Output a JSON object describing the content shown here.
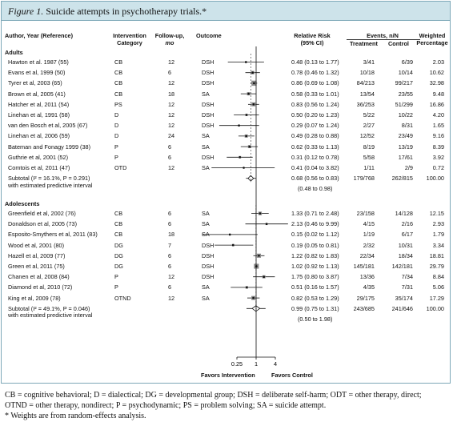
{
  "figure_label": "Figure 1.",
  "figure_title": "Suicide attempts in psychotherapy trials.*",
  "headers": {
    "author": "Author, Year (Reference)",
    "intervention": "Intervention",
    "intervention2": "Category",
    "followup": "Follow-up,",
    "followup2": "mo",
    "outcome": "Outcome",
    "rr": "Relative Risk",
    "rr2": "(95% CI)",
    "events": "Events, n/N",
    "treatment": "Treatment",
    "control": "Control",
    "weighted": "Weighted",
    "weighted2": "Percentage"
  },
  "groups": [
    {
      "name": "Adults",
      "studies": [
        {
          "author": "Hawton et al. 1987 (55)",
          "cat": "CB",
          "fu": "12",
          "outcome": "DSH",
          "rr_text": "0.48 (0.13 to 1.77)",
          "treat": "3/41",
          "ctrl": "6/39",
          "weight": "2.03"
        },
        {
          "author": "Evans et al, 1999 (50)",
          "cat": "CB",
          "fu": "6",
          "outcome": "DSH",
          "rr_text": "0.78 (0.46 to 1.32)",
          "treat": "10/18",
          "ctrl": "10/14",
          "weight": "10.62"
        },
        {
          "author": "Tyrer et al, 2003 (65)",
          "cat": "CB",
          "fu": "12",
          "outcome": "DSH",
          "rr_text": "0.86 (0.69 to 1.08)",
          "treat": "84/213",
          "ctrl": "99/217",
          "weight": "32.98"
        },
        {
          "author": "Brown et al, 2005 (41)",
          "cat": "CB",
          "fu": "18",
          "outcome": "SA",
          "rr_text": "0.58 (0.33 to 1.01)",
          "treat": "13/54",
          "ctrl": "23/55",
          "weight": "9.48"
        },
        {
          "author": "Hatcher et al, 2011 (54)",
          "cat": "PS",
          "fu": "12",
          "outcome": "DSH",
          "rr_text": "0.83 (0.56 to 1.24)",
          "treat": "36/253",
          "ctrl": "51/299",
          "weight": "16.86"
        },
        {
          "author": "Linehan et al, 1991 (58)",
          "cat": "D",
          "fu": "12",
          "outcome": "DSH",
          "rr_text": "0.50 (0.20 to 1.23)",
          "treat": "5/22",
          "ctrl": "10/22",
          "weight": "4.20"
        },
        {
          "author": "van den Bosch et al, 2005 (67)",
          "cat": "D",
          "fu": "12",
          "outcome": "DSH",
          "rr_text": "0.29 (0.07 to 1.24)",
          "treat": "2/27",
          "ctrl": "8/31",
          "weight": "1.65"
        },
        {
          "author": "Linehan et al, 2006 (59)",
          "cat": "D",
          "fu": "24",
          "outcome": "SA",
          "rr_text": "0.49 (0.28 to 0.88)",
          "treat": "12/52",
          "ctrl": "23/49",
          "weight": "9.16"
        },
        {
          "author": "Bateman and Fonagy 1999 (38)",
          "cat": "P",
          "fu": "6",
          "outcome": "SA",
          "rr_text": "0.62 (0.33 to 1.13)",
          "treat": "8/19",
          "ctrl": "13/19",
          "weight": "8.39"
        },
        {
          "author": "Guthrie et al, 2001 (52)",
          "cat": "P",
          "fu": "6",
          "outcome": "DSH",
          "rr_text": "0.31 (0.12 to 0.78)",
          "treat": "5/58",
          "ctrl": "17/61",
          "weight": "3.92"
        },
        {
          "author": "Comtois et al, 2011 (47)",
          "cat": "OTD",
          "fu": "12",
          "outcome": "SA",
          "rr_text": "0.41 (0.04 to 3.82)",
          "treat": "1/11",
          "ctrl": "2/9",
          "weight": "0.72"
        }
      ],
      "subtotal_label": "Subtotal (I² = 16.1%, P = 0.291)",
      "subtotal_label2": "with estimated predictive interval",
      "subtotal_rr": "0.68 (0.56 to 0.83)",
      "subtotal_pi": "(0.48 to 0.98)",
      "subtotal_treat": "179/768",
      "subtotal_ctrl": "262/815",
      "subtotal_weight": "100.00"
    },
    {
      "name": "Adolescents",
      "studies": [
        {
          "author": "Greenfield et al, 2002 (76)",
          "cat": "CB",
          "fu": "6",
          "outcome": "SA",
          "rr_text": "1.33 (0.71 to 2.48)",
          "treat": "23/158",
          "ctrl": "14/128",
          "weight": "12.15"
        },
        {
          "author": "Donaldson et al, 2005 (73)",
          "cat": "CB",
          "fu": "6",
          "outcome": "SA",
          "rr_text": "2.13 (0.46 to 9.99)",
          "treat": "4/15",
          "ctrl": "2/16",
          "weight": "2.93"
        },
        {
          "author": "Esposito-Smythers et al, 2011 (83)",
          "cat": "CB",
          "fu": "18",
          "outcome": "SA",
          "rr_text": "0.15 (0.02 to 1.12)",
          "treat": "1/19",
          "ctrl": "6/17",
          "weight": "1.79"
        },
        {
          "author": "Wood et al, 2001 (80)",
          "cat": "DG",
          "fu": "7",
          "outcome": "DSH",
          "rr_text": "0.19 (0.05 to 0.81)",
          "treat": "2/32",
          "ctrl": "10/31",
          "weight": "3.34"
        },
        {
          "author": "Hazell et al, 2009 (77)",
          "cat": "DG",
          "fu": "6",
          "outcome": "DSH",
          "rr_text": "1.22 (0.82 to 1.83)",
          "treat": "22/34",
          "ctrl": "18/34",
          "weight": "18.81"
        },
        {
          "author": "Green et al, 2011 (75)",
          "cat": "DG",
          "fu": "6",
          "outcome": "DSH",
          "rr_text": "1.02 (0.92 to 1.13)",
          "treat": "145/181",
          "ctrl": "142/181",
          "weight": "29.79"
        },
        {
          "author": "Chanen et al, 2008 (84)",
          "cat": "P",
          "fu": "12",
          "outcome": "DSH",
          "rr_text": "1.75 (0.80 to 3.87)",
          "treat": "13/36",
          "ctrl": "7/34",
          "weight": "8.84"
        },
        {
          "author": "Diamond et al, 2010 (72)",
          "cat": "P",
          "fu": "6",
          "outcome": "SA",
          "rr_text": "0.51 (0.16 to 1.57)",
          "treat": "4/35",
          "ctrl": "7/31",
          "weight": "5.06"
        },
        {
          "author": "King et al, 2009 (78)",
          "cat": "OTND",
          "fu": "12",
          "outcome": "SA",
          "rr_text": "0.82 (0.53 to 1.29)",
          "treat": "29/175",
          "ctrl": "35/174",
          "weight": "17.29"
        }
      ],
      "subtotal_label": "Subtotal (I² = 49.1%, P = 0.046)",
      "subtotal_label2": "with estimated predictive interval",
      "subtotal_rr": "0.99 (0.75 to 1.31)",
      "subtotal_pi": "(0.50 to 1.98)",
      "subtotal_treat": "243/685",
      "subtotal_ctrl": "241/646",
      "subtotal_weight": "100.00"
    }
  ],
  "axis": {
    "ticks": [
      "0.25",
      "1",
      "4"
    ],
    "favors_left": "Favors Intervention",
    "favors_right": "Favors Control"
  },
  "footnotes": {
    "line1": "CB = cognitive behavioral; D = dialectical; DG = developmental group; DSH = deliberate self-harm; ODT = other therapy, direct;",
    "line2": "OTND = other therapy, nondirect; P = psychodynamic; PS = problem solving; SA = suicide attempt.",
    "line3": "* Weights are from random-effects analysis."
  },
  "chart_data": {
    "type": "forest",
    "x_scale": "log",
    "x_ticks": [
      0.25,
      1,
      4
    ],
    "xlabel_left": "Favors Intervention",
    "xlabel_right": "Favors Control",
    "groups": [
      {
        "name": "Adults",
        "points": [
          {
            "label": "Hawton et al. 1987 (55)",
            "rr": 0.48,
            "lo": 0.13,
            "hi": 1.77,
            "weight": 2.03
          },
          {
            "label": "Evans et al, 1999 (50)",
            "rr": 0.78,
            "lo": 0.46,
            "hi": 1.32,
            "weight": 10.62
          },
          {
            "label": "Tyrer et al, 2003 (65)",
            "rr": 0.86,
            "lo": 0.69,
            "hi": 1.08,
            "weight": 32.98
          },
          {
            "label": "Brown et al, 2005 (41)",
            "rr": 0.58,
            "lo": 0.33,
            "hi": 1.01,
            "weight": 9.48
          },
          {
            "label": "Hatcher et al, 2011 (54)",
            "rr": 0.83,
            "lo": 0.56,
            "hi": 1.24,
            "weight": 16.86
          },
          {
            "label": "Linehan et al, 1991 (58)",
            "rr": 0.5,
            "lo": 0.2,
            "hi": 1.23,
            "weight": 4.2
          },
          {
            "label": "van den Bosch et al, 2005 (67)",
            "rr": 0.29,
            "lo": 0.07,
            "hi": 1.24,
            "weight": 1.65
          },
          {
            "label": "Linehan et al, 2006 (59)",
            "rr": 0.49,
            "lo": 0.28,
            "hi": 0.88,
            "weight": 9.16
          },
          {
            "label": "Bateman and Fonagy 1999 (38)",
            "rr": 0.62,
            "lo": 0.33,
            "hi": 1.13,
            "weight": 8.39
          },
          {
            "label": "Guthrie et al, 2001 (52)",
            "rr": 0.31,
            "lo": 0.12,
            "hi": 0.78,
            "weight": 3.92
          },
          {
            "label": "Comtois et al, 2011 (47)",
            "rr": 0.41,
            "lo": 0.04,
            "hi": 3.82,
            "weight": 0.72
          }
        ],
        "subtotal": {
          "rr": 0.68,
          "lo": 0.56,
          "hi": 0.83,
          "pi_lo": 0.48,
          "pi_hi": 0.98
        }
      },
      {
        "name": "Adolescents",
        "points": [
          {
            "label": "Greenfield et al, 2002 (76)",
            "rr": 1.33,
            "lo": 0.71,
            "hi": 2.48,
            "weight": 12.15
          },
          {
            "label": "Donaldson et al, 2005 (73)",
            "rr": 2.13,
            "lo": 0.46,
            "hi": 9.99,
            "weight": 2.93
          },
          {
            "label": "Esposito-Smythers et al, 2011 (83)",
            "rr": 0.15,
            "lo": 0.02,
            "hi": 1.12,
            "weight": 1.79
          },
          {
            "label": "Wood et al, 2001 (80)",
            "rr": 0.19,
            "lo": 0.05,
            "hi": 0.81,
            "weight": 3.34
          },
          {
            "label": "Hazell et al, 2009 (77)",
            "rr": 1.22,
            "lo": 0.82,
            "hi": 1.83,
            "weight": 18.81
          },
          {
            "label": "Green et al, 2011 (75)",
            "rr": 1.02,
            "lo": 0.92,
            "hi": 1.13,
            "weight": 29.79
          },
          {
            "label": "Chanen et al, 2008 (84)",
            "rr": 1.75,
            "lo": 0.8,
            "hi": 3.87,
            "weight": 8.84
          },
          {
            "label": "Diamond et al, 2010 (72)",
            "rr": 0.51,
            "lo": 0.16,
            "hi": 1.57,
            "weight": 5.06
          },
          {
            "label": "King et al, 2009 (78)",
            "rr": 0.82,
            "lo": 0.53,
            "hi": 1.29,
            "weight": 17.29
          }
        ],
        "subtotal": {
          "rr": 0.99,
          "lo": 0.75,
          "hi": 1.31,
          "pi_lo": 0.5,
          "pi_hi": 1.98
        }
      }
    ]
  }
}
